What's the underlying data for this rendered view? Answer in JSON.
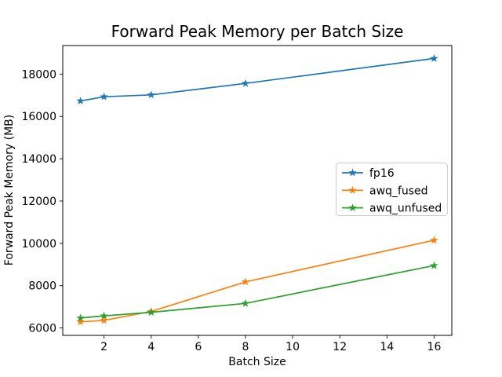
{
  "figure": {
    "title": "Forward Peak Memory per Batch Size"
  },
  "chart_data": {
    "type": "line",
    "title": "Forward Peak Memory per Batch Size",
    "xlabel": "Batch Size",
    "ylabel": "Forward Peak Memory (MB)",
    "x": [
      1,
      2,
      4,
      8,
      16
    ],
    "series": [
      {
        "name": "fp16",
        "color": "#1f77b4",
        "values": [
          16730,
          16930,
          17020,
          17560,
          18740
        ]
      },
      {
        "name": "awq_fused",
        "color": "#ff7f0e",
        "values": [
          6290,
          6360,
          6780,
          8180,
          10150
        ]
      },
      {
        "name": "awq_unfused",
        "color": "#2ca02c",
        "values": [
          6470,
          6570,
          6740,
          7160,
          8950
        ]
      }
    ],
    "xticks": [
      2,
      4,
      6,
      8,
      10,
      12,
      14,
      16
    ],
    "yticks": [
      6000,
      8000,
      10000,
      12000,
      14000,
      16000,
      18000
    ],
    "xlim": [
      0.25,
      16.75
    ],
    "ylim": [
      5650,
      19350
    ],
    "marker": "star",
    "grid": false,
    "line_width": 1.7,
    "axis_color": "#000000",
    "legend": {
      "position": "center-right",
      "entries": [
        "fp16",
        "awq_fused",
        "awq_unfused"
      ],
      "border_color": "#cccccc",
      "background": "#ffffff"
    }
  }
}
